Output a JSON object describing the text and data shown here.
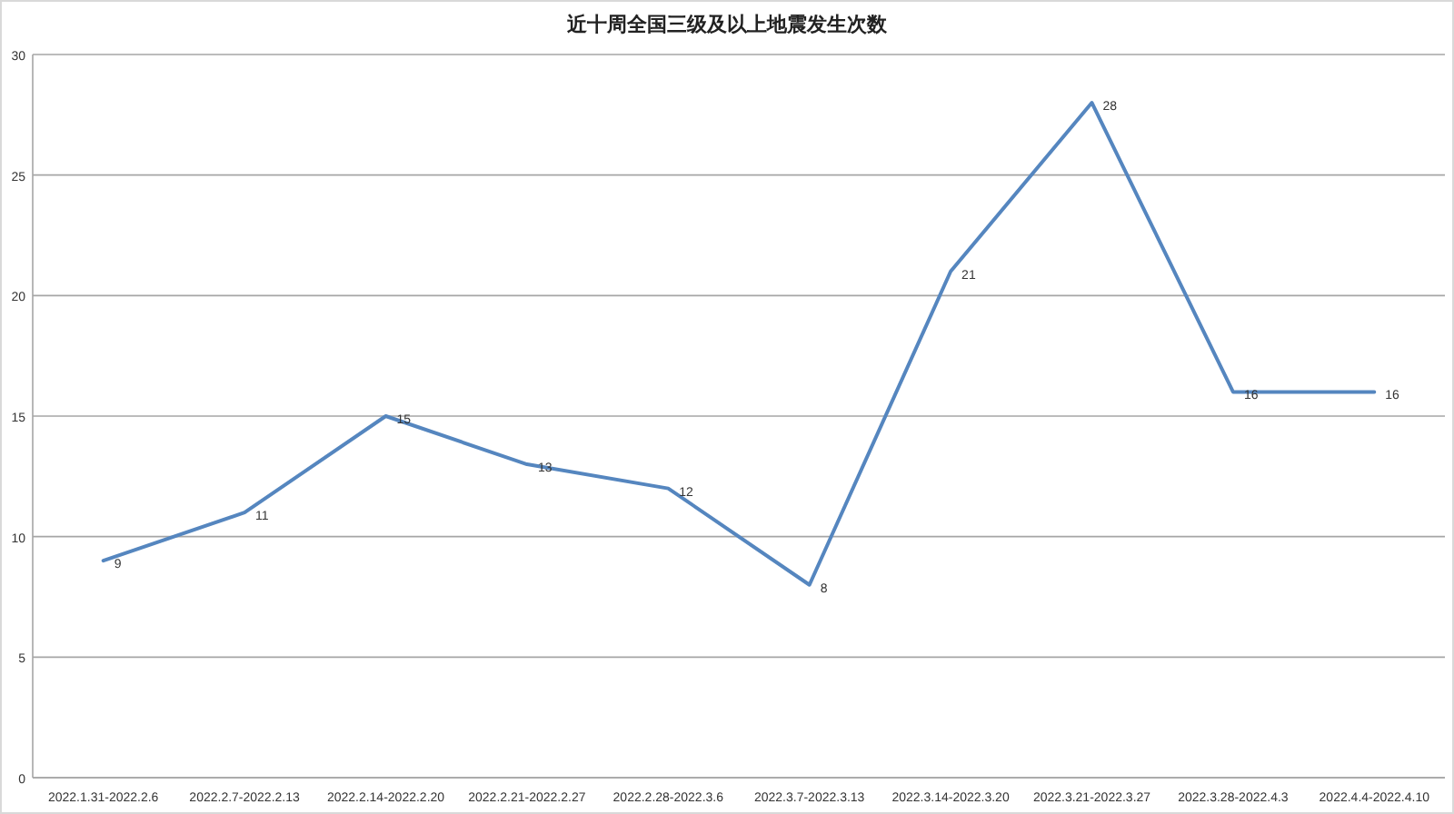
{
  "chart_data": {
    "type": "line",
    "title": "近十周全国三级及以上地震发生次数",
    "categories": [
      "2022.1.31-2022.2.6",
      "2022.2.7-2022.2.13",
      "2022.2.14-2022.2.20",
      "2022.2.21-2022.2.27",
      "2022.2.28-2022.3.6",
      "2022.3.7-2022.3.13",
      "2022.3.14-2022.3.20",
      "2022.3.21-2022.3.27",
      "2022.3.28-2022.4.3",
      "2022.4.4-2022.4.10"
    ],
    "values": [
      9,
      11,
      15,
      13,
      12,
      8,
      21,
      28,
      16,
      16
    ],
    "color": "#5586bf",
    "ylim": [
      0,
      30
    ],
    "yticks": [
      0,
      5,
      10,
      15,
      20,
      25,
      30
    ],
    "grid": "y",
    "data_labels": true
  }
}
